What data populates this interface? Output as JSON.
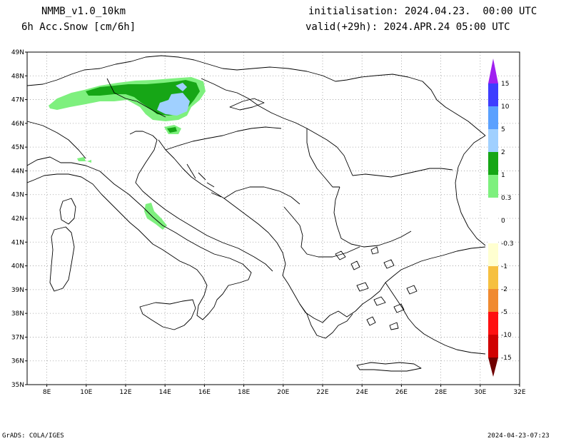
{
  "header": {
    "model": "NMMB_v1.0_10km",
    "field": "6h Acc.Snow [cm/6h]",
    "init": "initialisation: 2024.04.23.  00:00 UTC",
    "valid": "valid(+29h): 2024.APR.24 05:00 UTC"
  },
  "map": {
    "lon_range": [
      7,
      32
    ],
    "lat_range": [
      35,
      49
    ],
    "lon_ticks": [
      "8E",
      "10E",
      "12E",
      "14E",
      "16E",
      "18E",
      "20E",
      "22E",
      "24E",
      "26E",
      "28E",
      "30E",
      "32E"
    ],
    "lat_ticks": [
      "49N",
      "48N",
      "47N",
      "46N",
      "45N",
      "44N",
      "43N",
      "42N",
      "41N",
      "40N",
      "39N",
      "38N",
      "37N",
      "36N",
      "35N"
    ],
    "grid": "dotted"
  },
  "legend": {
    "labels": [
      "15",
      "10",
      "5",
      "2",
      "1",
      "0.3",
      "0",
      "-0.3",
      "-1",
      "-2",
      "-5",
      "-10",
      "-15"
    ],
    "colors": {
      "top": "#a020f0",
      "c15": "#3d3dff",
      "c10": "#5aa0ff",
      "c5": "#a0d0ff",
      "c2": "#16a616",
      "c1": "#7ef07e",
      "c03": "#ffffff",
      "n03": "#ffffd0",
      "n1": "#f6c040",
      "n2": "#f08a30",
      "n5": "#ff1010",
      "n10": "#d00000",
      "n15": "#a00000",
      "bottom": "#700000"
    }
  },
  "footer": {
    "left": "GrADS: COLA/IGES",
    "right": "2024-04-23-07:23"
  }
}
